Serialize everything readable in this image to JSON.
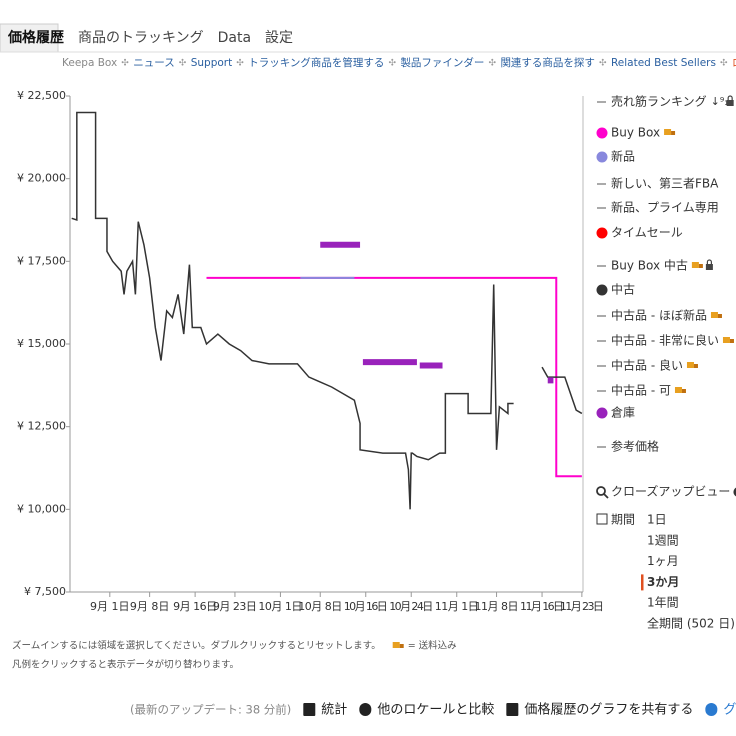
{
  "tabs": [
    "価格履歴",
    "商品のトラッキング",
    "Data",
    "設定"
  ],
  "links": [
    "Keepa Box",
    "ニュース",
    "Support",
    "トラッキング商品を管理する",
    "製品ファインダー",
    "関連する商品を探す",
    "Related Best Sellers",
    "ログイン / アカウントの登録"
  ],
  "chart_data": {
    "type": "line",
    "ylim": [
      7500,
      22500
    ],
    "yticks": [
      {
        "value": 7500,
        "label": "¥ 7,500"
      },
      {
        "value": 10000,
        "label": "¥ 10,000"
      },
      {
        "value": 12500,
        "label": "¥ 12,500"
      },
      {
        "value": 15000,
        "label": "¥ 15,000"
      },
      {
        "value": 17500,
        "label": "¥ 17,500"
      },
      {
        "value": 20000,
        "label": "¥ 20,000"
      },
      {
        "value": 22500,
        "label": "¥ 22,500"
      }
    ],
    "xlim": [
      0,
      90.2
    ],
    "xticks": [
      {
        "value": 7,
        "label": "9月 1日"
      },
      {
        "value": 14,
        "label": "9月 8日"
      },
      {
        "value": 22,
        "label": "9月 16日"
      },
      {
        "value": 29,
        "label": "9月 23日"
      },
      {
        "value": 37,
        "label": "10月 1日"
      },
      {
        "value": 44,
        "label": "10月 8日"
      },
      {
        "value": 52,
        "label": "10月 16日"
      },
      {
        "value": 60,
        "label": "10月 24日"
      },
      {
        "value": 68,
        "label": "11月 1日"
      },
      {
        "value": 75,
        "label": "11月 8日"
      },
      {
        "value": 83,
        "label": "11月 16日"
      },
      {
        "value": 90,
        "label": "11月 23日"
      }
    ],
    "series": [
      {
        "name": "売れ筋ランキング",
        "color": "#555555",
        "marker": "line",
        "sort_icon": true,
        "lock": true,
        "x": [],
        "values": []
      },
      {
        "name": "Buy Box",
        "color": "#ff00cc",
        "marker": "dot",
        "shipping": true,
        "width": 2,
        "x": [
          24,
          85.5,
          85.5,
          90
        ],
        "values": [
          17000,
          17000,
          11000,
          11000
        ]
      },
      {
        "name": "新品",
        "color": "#8888dd",
        "marker": "dot",
        "width": 2,
        "x": [
          40.5,
          50
        ],
        "values": [
          17000,
          17000
        ]
      },
      {
        "name": "新しい、第三者FBA",
        "color": "#555555",
        "marker": "line",
        "x": [],
        "values": []
      },
      {
        "name": "新品、プライム専用",
        "color": "#555555",
        "marker": "line",
        "x": [],
        "values": []
      },
      {
        "name": "タイムセール",
        "color": "#ff0000",
        "marker": "dot",
        "x": [],
        "values": []
      },
      {
        "name": "Buy Box 中古",
        "color": "#555555",
        "marker": "line",
        "shipping": true,
        "lock": true,
        "x": [],
        "values": []
      },
      {
        "name": "中古",
        "color": "#333333",
        "marker": "dot",
        "width": 1.5,
        "x": [
          0.3,
          1.2,
          1.2,
          4.5,
          4.5,
          6.5,
          6.5,
          7.5,
          9,
          9.5,
          10,
          11,
          11.5,
          12,
          13,
          14,
          15,
          16,
          17,
          18,
          19,
          20,
          21,
          21.5,
          23,
          24,
          26,
          28,
          30,
          32,
          35,
          40,
          42,
          46,
          48,
          50,
          51,
          51,
          55,
          59,
          59.5,
          59.8,
          60,
          60.2,
          61,
          63,
          65,
          66,
          66,
          70,
          70,
          74,
          74.5,
          75,
          75.5,
          77,
          77,
          78,
          null,
          83,
          84,
          86,
          87,
          89,
          90
        ],
        "values": [
          18800,
          18750,
          22000,
          22000,
          18800,
          18800,
          17800,
          17500,
          17200,
          16500,
          17200,
          17500,
          16500,
          18700,
          18000,
          17000,
          15500,
          14500,
          16000,
          15800,
          16500,
          15300,
          17400,
          15500,
          15500,
          15000,
          15300,
          15000,
          14800,
          14500,
          14400,
          14400,
          14000,
          13700,
          13500,
          13300,
          12600,
          11800,
          11700,
          11700,
          11200,
          10000,
          11700,
          11700,
          11600,
          11500,
          11700,
          11700,
          13500,
          13500,
          12900,
          12900,
          16800,
          11800,
          13100,
          12900,
          13200,
          13200,
          null,
          14300,
          14000,
          14000,
          14000,
          13000,
          12900
        ]
      },
      {
        "name": "中古品 - ほぼ新品",
        "color": "#555555",
        "marker": "line",
        "shipping": true,
        "x": [],
        "values": []
      },
      {
        "name": "中古品 - 非常に良い",
        "color": "#555555",
        "marker": "line",
        "shipping": true,
        "x": [],
        "values": []
      },
      {
        "name": "中古品 - 良い",
        "color": "#555555",
        "marker": "line",
        "shipping": true,
        "x": [],
        "values": []
      },
      {
        "name": "中古品 - 可",
        "color": "#555555",
        "marker": "line",
        "shipping": true,
        "x": [],
        "values": []
      },
      {
        "name": "倉庫",
        "color": "#9922bb",
        "marker": "dot",
        "width": 6,
        "x": [
          44,
          51,
          null,
          51.5,
          61,
          null,
          61.5,
          65.5,
          null,
          84,
          85
        ],
        "values": [
          18000,
          18000,
          null,
          14450,
          14450,
          null,
          14350,
          14350,
          null,
          13900,
          13900
        ]
      },
      {
        "name": "参考価格",
        "color": "#555555",
        "marker": "line",
        "x": [],
        "values": []
      }
    ]
  },
  "closeup": "クローズアップビュー",
  "range_title": "期間",
  "ranges": [
    "1日",
    "1週間",
    "1ヶ月",
    "3か月",
    "1年間",
    "全期間 (502 日)"
  ],
  "selected_range": 3,
  "notes": [
    "ズームインするには領域を選択してください。ダブルクリックするとリセットします。",
    "= 送料込み",
    "凡例をクリックすると表示データが切り替わります。"
  ],
  "footer": [
    "(最新のアップデート: 38 分前)",
    "統計",
    "他のロケールと比較",
    "価格履歴のグラフを共有する",
    "グラフ設定"
  ]
}
